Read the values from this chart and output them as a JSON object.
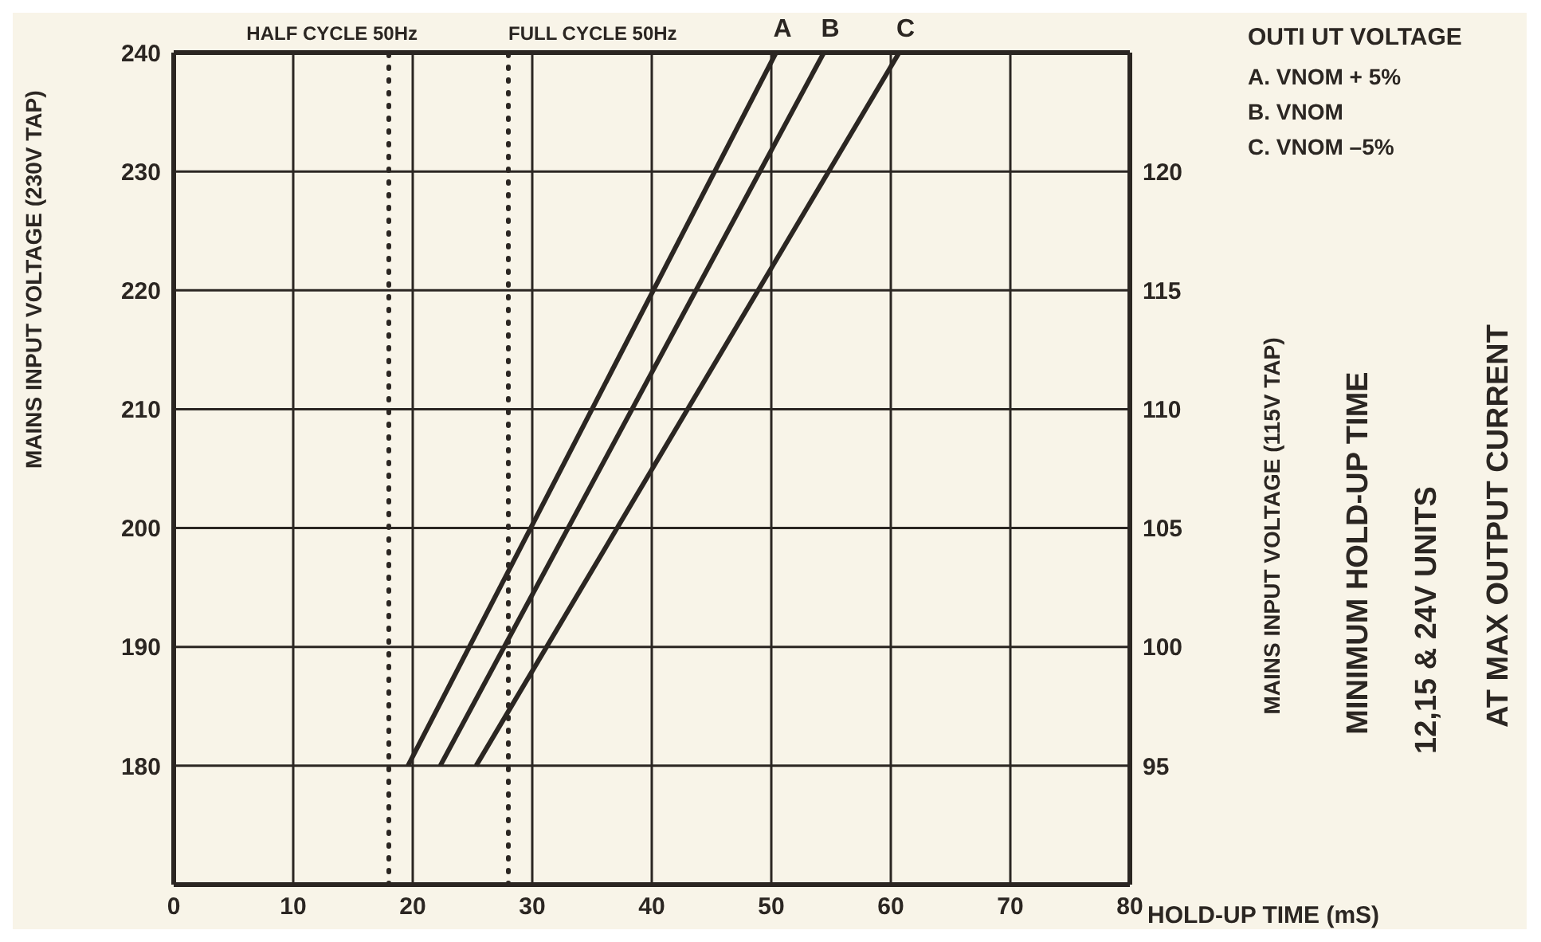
{
  "chart_data": {
    "type": "line",
    "title": "MINIMUM HOLD-UP TIME",
    "subtitle": "12,15 & 24V UNITS",
    "xlabel": "HOLD-UP TIME (mS)",
    "ylabel": "MAINS INPUT VOLTAGE  (230V TAP)",
    "y2label": "MAINS INPUT VOLTAGE (115V TAP)",
    "legend_title": "OUTI UT VOLTAGE",
    "annotations": [
      "A. VNOM + 5%",
      "B. VNOM",
      "C. VNOM –5%",
      "AT MAX OUTPUT CURRENT"
    ],
    "series": [
      {
        "name": "A",
        "color": "#2b2622",
        "x": [
          19.6,
          50.4
        ],
        "values": [
          180,
          240
        ]
      },
      {
        "name": "B",
        "color": "#2b2622",
        "x": [
          22.3,
          54.4
        ],
        "values": [
          180,
          240
        ]
      },
      {
        "name": "C",
        "color": "#2b2622",
        "x": [
          25.3,
          60.7
        ],
        "values": [
          180,
          240
        ]
      }
    ],
    "xlim": [
      0,
      80
    ],
    "xticks": [
      0,
      10,
      20,
      30,
      40,
      50,
      60,
      70,
      80
    ],
    "ylim": [
      170,
      240
    ],
    "yticks": [
      180,
      190,
      200,
      210,
      220,
      230,
      240
    ],
    "y2lim": [
      90,
      125
    ],
    "y2ticks": [
      95,
      100,
      105,
      110,
      115,
      120
    ],
    "ref_lines": [
      {
        "axis": "x",
        "value": 18,
        "label": "HALF CYCLE 50Hz",
        "line_style": "dotted"
      },
      {
        "axis": "x",
        "value": 28,
        "label": "FULL CYCLE 50Hz",
        "line_style": "dotted"
      }
    ],
    "grid": true,
    "marker": "none",
    "line_style": "solid"
  }
}
